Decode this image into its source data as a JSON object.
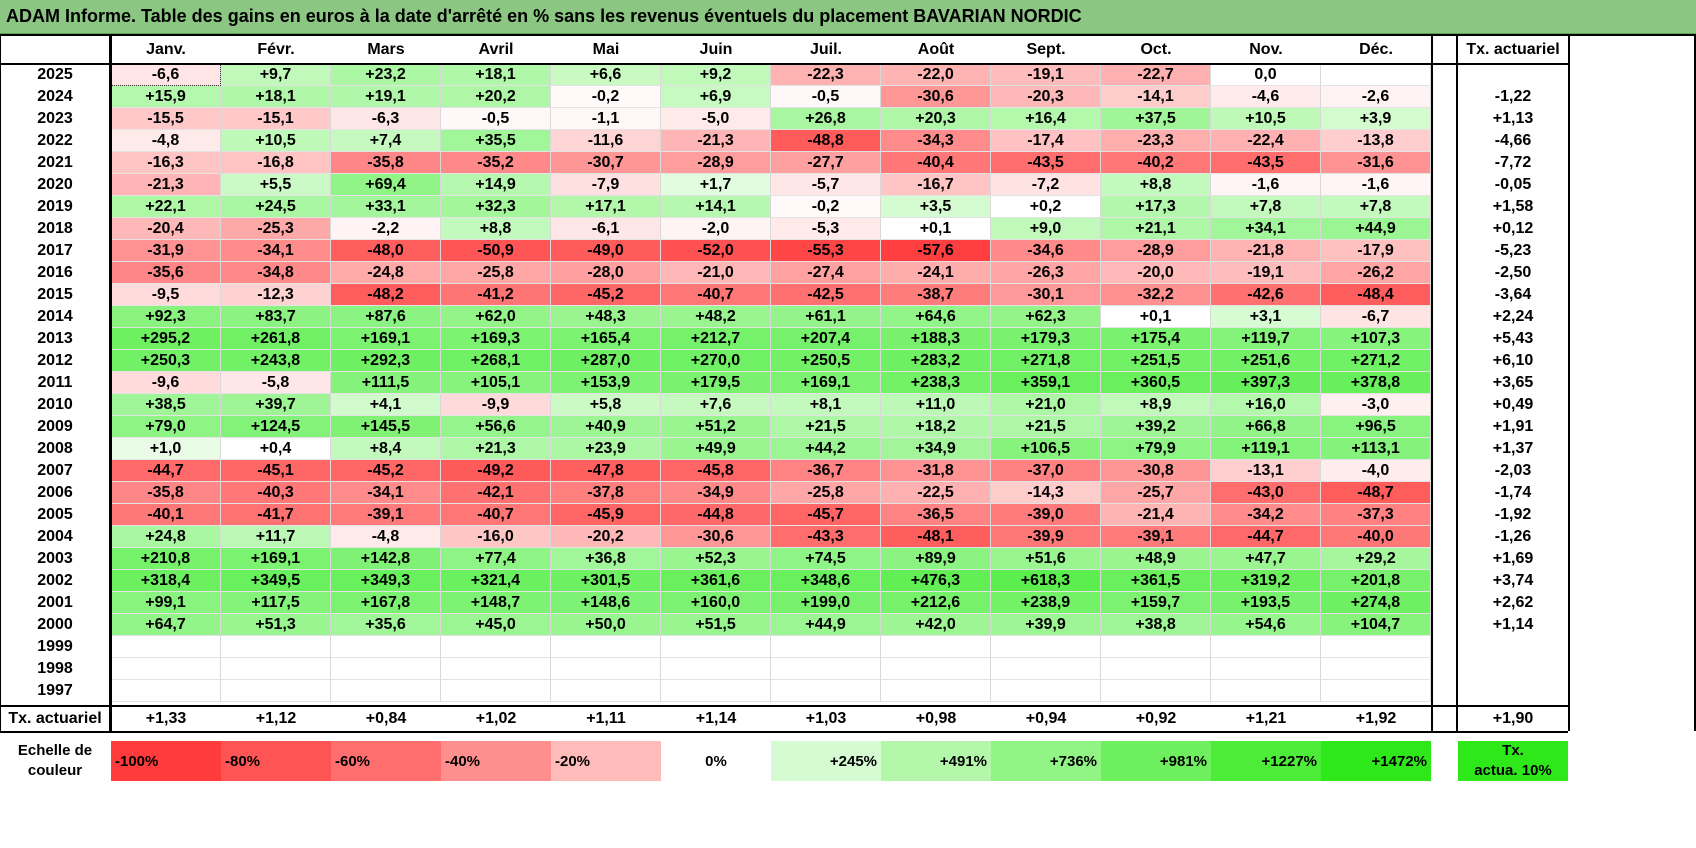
{
  "title": "ADAM Informe. Table des gains en euros à la date d'arrêté en % sans les revenus éventuels du placement BAVARIAN NORDIC",
  "months": [
    "Janv.",
    "Févr.",
    "Mars",
    "Avril",
    "Mai",
    "Juin",
    "Juil.",
    "Août",
    "Sept.",
    "Oct.",
    "Nov.",
    "Déc."
  ],
  "tx_header": "Tx. actuariel",
  "rows": [
    {
      "year": "2025",
      "values": [
        "-6,6",
        "+9,7",
        "+23,2",
        "+18,1",
        "+6,6",
        "+9,2",
        "-22,3",
        "-22,0",
        "-19,1",
        "-22,7",
        "0,0",
        ""
      ],
      "tx": ""
    },
    {
      "year": "2024",
      "values": [
        "+15,9",
        "+18,1",
        "+19,1",
        "+20,2",
        "-0,2",
        "+6,9",
        "-0,5",
        "-30,6",
        "-20,3",
        "-14,1",
        "-4,6",
        "-2,6"
      ],
      "tx": "-1,22"
    },
    {
      "year": "2023",
      "values": [
        "-15,5",
        "-15,1",
        "-6,3",
        "-0,5",
        "-1,1",
        "-5,0",
        "+26,8",
        "+20,3",
        "+16,4",
        "+37,5",
        "+10,5",
        "+3,9"
      ],
      "tx": "+1,13"
    },
    {
      "year": "2022",
      "values": [
        "-4,8",
        "+10,5",
        "+7,4",
        "+35,5",
        "-11,6",
        "-21,3",
        "-48,8",
        "-34,3",
        "-17,4",
        "-23,3",
        "-22,4",
        "-13,8"
      ],
      "tx": "-4,66"
    },
    {
      "year": "2021",
      "values": [
        "-16,3",
        "-16,8",
        "-35,8",
        "-35,2",
        "-30,7",
        "-28,9",
        "-27,7",
        "-40,4",
        "-43,5",
        "-40,2",
        "-43,5",
        "-31,6"
      ],
      "tx": "-7,72"
    },
    {
      "year": "2020",
      "values": [
        "-21,3",
        "+5,5",
        "+69,4",
        "+14,9",
        "-7,9",
        "+1,7",
        "-5,7",
        "-16,7",
        "-7,2",
        "+8,8",
        "-1,6",
        "-1,6"
      ],
      "tx": "-0,05"
    },
    {
      "year": "2019",
      "values": [
        "+22,1",
        "+24,5",
        "+33,1",
        "+32,3",
        "+17,1",
        "+14,1",
        "-0,2",
        "+3,5",
        "+0,2",
        "+17,3",
        "+7,8",
        "+7,8"
      ],
      "tx": "+1,58"
    },
    {
      "year": "2018",
      "values": [
        "-20,4",
        "-25,3",
        "-2,2",
        "+8,8",
        "-6,1",
        "-2,0",
        "-5,3",
        "+0,1",
        "+9,0",
        "+21,1",
        "+34,1",
        "+44,9"
      ],
      "tx": "+0,12"
    },
    {
      "year": "2017",
      "values": [
        "-31,9",
        "-34,1",
        "-48,0",
        "-50,9",
        "-49,0",
        "-52,0",
        "-55,3",
        "-57,6",
        "-34,6",
        "-28,9",
        "-21,8",
        "-17,9"
      ],
      "tx": "-5,23"
    },
    {
      "year": "2016",
      "values": [
        "-35,6",
        "-34,8",
        "-24,8",
        "-25,8",
        "-28,0",
        "-21,0",
        "-27,4",
        "-24,1",
        "-26,3",
        "-20,0",
        "-19,1",
        "-26,2"
      ],
      "tx": "-2,50"
    },
    {
      "year": "2015",
      "values": [
        "-9,5",
        "-12,3",
        "-48,2",
        "-41,2",
        "-45,2",
        "-40,7",
        "-42,5",
        "-38,7",
        "-30,1",
        "-32,2",
        "-42,6",
        "-48,4"
      ],
      "tx": "-3,64"
    },
    {
      "year": "2014",
      "values": [
        "+92,3",
        "+83,7",
        "+87,6",
        "+62,0",
        "+48,3",
        "+48,2",
        "+61,1",
        "+64,6",
        "+62,3",
        "+0,1",
        "+3,1",
        "-6,7"
      ],
      "tx": "+2,24"
    },
    {
      "year": "2013",
      "values": [
        "+295,2",
        "+261,8",
        "+169,1",
        "+169,3",
        "+165,4",
        "+212,7",
        "+207,4",
        "+188,3",
        "+179,3",
        "+175,4",
        "+119,7",
        "+107,3"
      ],
      "tx": "+5,43"
    },
    {
      "year": "2012",
      "values": [
        "+250,3",
        "+243,8",
        "+292,3",
        "+268,1",
        "+287,0",
        "+270,0",
        "+250,5",
        "+283,2",
        "+271,8",
        "+251,5",
        "+251,6",
        "+271,2"
      ],
      "tx": "+6,10"
    },
    {
      "year": "2011",
      "values": [
        "-9,6",
        "-5,8",
        "+111,5",
        "+105,1",
        "+153,9",
        "+179,5",
        "+169,1",
        "+238,3",
        "+359,1",
        "+360,5",
        "+397,3",
        "+378,8"
      ],
      "tx": "+3,65"
    },
    {
      "year": "2010",
      "values": [
        "+38,5",
        "+39,7",
        "+4,1",
        "-9,9",
        "+5,8",
        "+7,6",
        "+8,1",
        "+11,0",
        "+21,0",
        "+8,9",
        "+16,0",
        "-3,0"
      ],
      "tx": "+0,49"
    },
    {
      "year": "2009",
      "values": [
        "+79,0",
        "+124,5",
        "+145,5",
        "+56,6",
        "+40,9",
        "+51,2",
        "+21,5",
        "+18,2",
        "+21,5",
        "+39,2",
        "+66,8",
        "+96,5"
      ],
      "tx": "+1,91"
    },
    {
      "year": "2008",
      "values": [
        "+1,0",
        "+0,4",
        "+8,4",
        "+21,3",
        "+23,9",
        "+49,9",
        "+44,2",
        "+34,9",
        "+106,5",
        "+79,9",
        "+119,1",
        "+113,1"
      ],
      "tx": "+1,37"
    },
    {
      "year": "2007",
      "values": [
        "-44,7",
        "-45,1",
        "-45,2",
        "-49,2",
        "-47,8",
        "-45,8",
        "-36,7",
        "-31,8",
        "-37,0",
        "-30,8",
        "-13,1",
        "-4,0"
      ],
      "tx": "-2,03"
    },
    {
      "year": "2006",
      "values": [
        "-35,8",
        "-40,3",
        "-34,1",
        "-42,1",
        "-37,8",
        "-34,9",
        "-25,8",
        "-22,5",
        "-14,3",
        "-25,7",
        "-43,0",
        "-48,7"
      ],
      "tx": "-1,74"
    },
    {
      "year": "2005",
      "values": [
        "-40,1",
        "-41,7",
        "-39,1",
        "-40,7",
        "-45,9",
        "-44,8",
        "-45,7",
        "-36,5",
        "-39,0",
        "-21,4",
        "-34,2",
        "-37,3"
      ],
      "tx": "-1,92"
    },
    {
      "year": "2004",
      "values": [
        "+24,8",
        "+11,7",
        "-4,8",
        "-16,0",
        "-20,2",
        "-30,6",
        "-43,3",
        "-48,1",
        "-39,9",
        "-39,1",
        "-44,7",
        "-40,0"
      ],
      "tx": "-1,26"
    },
    {
      "year": "2003",
      "values": [
        "+210,8",
        "+169,1",
        "+142,8",
        "+77,4",
        "+36,8",
        "+52,3",
        "+74,5",
        "+89,9",
        "+51,6",
        "+48,9",
        "+47,7",
        "+29,2"
      ],
      "tx": "+1,69"
    },
    {
      "year": "2002",
      "values": [
        "+318,4",
        "+349,5",
        "+349,3",
        "+321,4",
        "+301,5",
        "+361,6",
        "+348,6",
        "+476,3",
        "+618,3",
        "+361,5",
        "+319,2",
        "+201,8"
      ],
      "tx": "+3,74"
    },
    {
      "year": "2001",
      "values": [
        "+99,1",
        "+117,5",
        "+167,8",
        "+148,7",
        "+148,6",
        "+160,0",
        "+199,0",
        "+212,6",
        "+238,9",
        "+159,7",
        "+193,5",
        "+274,8"
      ],
      "tx": "+2,62"
    },
    {
      "year": "2000",
      "values": [
        "+64,7",
        "+51,3",
        "+35,6",
        "+45,0",
        "+50,0",
        "+51,5",
        "+44,9",
        "+42,0",
        "+39,9",
        "+38,8",
        "+54,6",
        "+104,7"
      ],
      "tx": "+1,14"
    },
    {
      "year": "1999",
      "values": [
        "",
        "",
        "",
        "",
        "",
        "",
        "",
        "",
        "",
        "",
        "",
        ""
      ],
      "tx": ""
    },
    {
      "year": "1998",
      "values": [
        "",
        "",
        "",
        "",
        "",
        "",
        "",
        "",
        "",
        "",
        "",
        ""
      ],
      "tx": ""
    },
    {
      "year": "1997",
      "values": [
        "",
        "",
        "",
        "",
        "",
        "",
        "",
        "",
        "",
        "",
        "",
        ""
      ],
      "tx": ""
    }
  ],
  "footer": {
    "label": "Tx. actuariel",
    "values": [
      "+1,33",
      "+1,12",
      "+0,84",
      "+1,02",
      "+1,11",
      "+1,14",
      "+1,03",
      "+0,98",
      "+0,94",
      "+0,92",
      "+1,21",
      "+1,92"
    ],
    "tx": "+1,90"
  },
  "legend": {
    "label_line1": "Echelle de",
    "label_line2": "couleur",
    "steps": [
      {
        "text": "-100%",
        "color": "#ff3b3b",
        "align": "left"
      },
      {
        "text": "-80%",
        "color": "#ff5454",
        "align": "left"
      },
      {
        "text": "-60%",
        "color": "#ff6e6e",
        "align": "left"
      },
      {
        "text": "-40%",
        "color": "#ff8e8e",
        "align": "left"
      },
      {
        "text": "-20%",
        "color": "#ffbaba",
        "align": "left"
      },
      {
        "text": "0%",
        "color": "#ffffff",
        "align": "center"
      },
      {
        "text": "+245%",
        "color": "#d6fbd2",
        "align": "right"
      },
      {
        "text": "+491%",
        "color": "#b4f7ab",
        "align": "right"
      },
      {
        "text": "+736%",
        "color": "#92f485",
        "align": "right"
      },
      {
        "text": "+981%",
        "color": "#6ef05e",
        "align": "right"
      },
      {
        "text": "+1227%",
        "color": "#4cec38",
        "align": "right"
      },
      {
        "text": "+1472%",
        "color": "#2ee81a",
        "align": "right"
      }
    ],
    "tx_line1": "Tx.",
    "tx_line2": "actua. 10%",
    "tx_color": "#2ee81a"
  }
}
